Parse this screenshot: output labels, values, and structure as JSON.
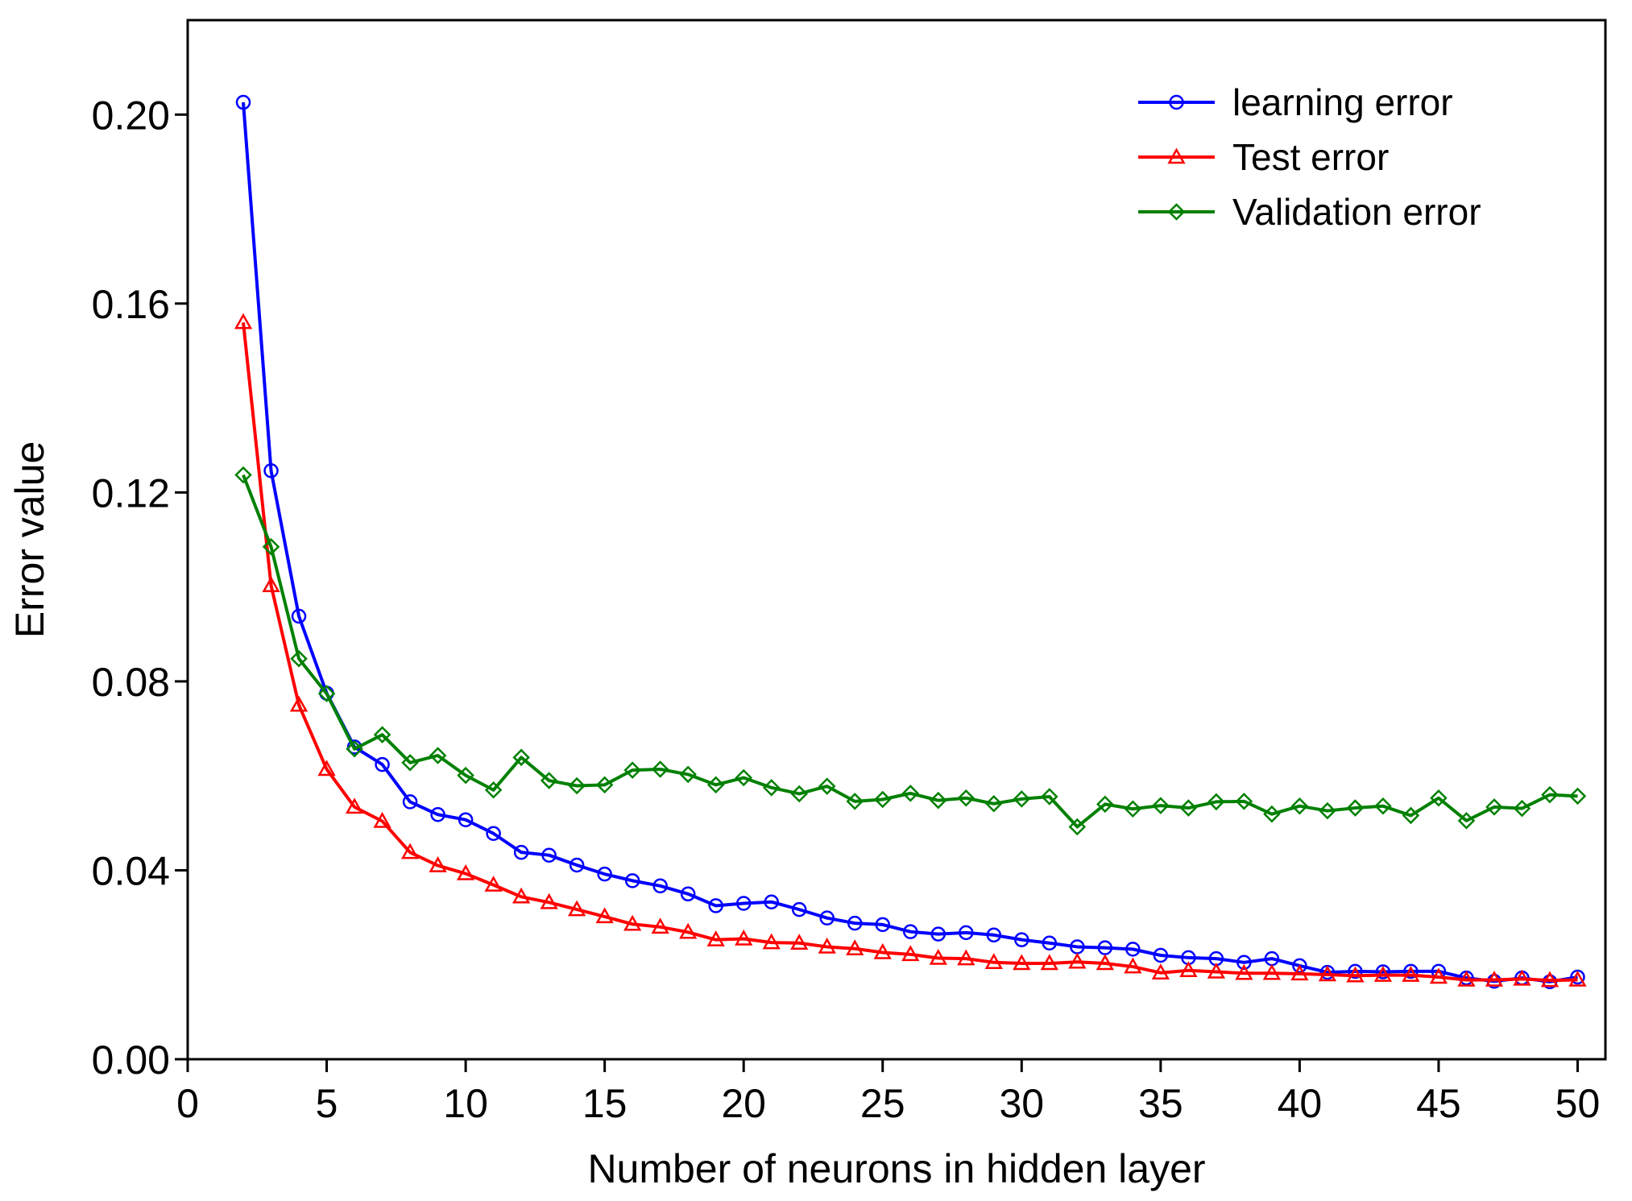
{
  "chart_data": {
    "type": "line",
    "title": "",
    "xlabel": "Number of neurons in hidden layer",
    "ylabel": "Error value",
    "xlim": [
      0,
      51
    ],
    "ylim": [
      0.0,
      0.22
    ],
    "xticks": [
      0,
      5,
      10,
      15,
      20,
      25,
      30,
      35,
      40,
      45,
      50
    ],
    "xtick_labels": [
      "0",
      "5",
      "10",
      "15",
      "20",
      "25",
      "30",
      "35",
      "40",
      "45",
      "50"
    ],
    "yticks": [
      0.0,
      0.04,
      0.08,
      0.12,
      0.16,
      0.2
    ],
    "ytick_labels": [
      "0.00",
      "0.04",
      "0.08",
      "0.12",
      "0.16",
      "0.20"
    ],
    "grid": false,
    "legend_position": "top-right",
    "x": [
      2,
      3,
      4,
      5,
      6,
      7,
      8,
      9,
      10,
      11,
      12,
      13,
      14,
      15,
      16,
      17,
      18,
      19,
      20,
      21,
      22,
      23,
      24,
      25,
      26,
      27,
      28,
      29,
      30,
      31,
      32,
      33,
      34,
      35,
      36,
      37,
      38,
      39,
      40,
      41,
      42,
      43,
      44,
      45,
      46,
      47,
      48,
      49,
      50
    ],
    "series": [
      {
        "name": "learning error",
        "color": "#0000ff",
        "marker": "circle",
        "values": [
          0.2026,
          0.1246,
          0.0938,
          0.0775,
          0.0661,
          0.0624,
          0.0545,
          0.0518,
          0.0507,
          0.0478,
          0.0438,
          0.0432,
          0.0411,
          0.0392,
          0.0378,
          0.0367,
          0.035,
          0.0325,
          0.033,
          0.0333,
          0.0317,
          0.0299,
          0.0288,
          0.0285,
          0.027,
          0.0265,
          0.0268,
          0.0263,
          0.0253,
          0.0246,
          0.0238,
          0.0236,
          0.0233,
          0.022,
          0.0215,
          0.0213,
          0.0205,
          0.0213,
          0.0198,
          0.0184,
          0.0186,
          0.0185,
          0.0186,
          0.0186,
          0.0172,
          0.0165,
          0.0172,
          0.0164,
          0.0174
        ]
      },
      {
        "name": "Test error",
        "color": "#ff0000",
        "marker": "triangle",
        "values": [
          0.156,
          0.1003,
          0.075,
          0.0614,
          0.0534,
          0.0504,
          0.0438,
          0.041,
          0.0393,
          0.0369,
          0.0344,
          0.0332,
          0.0317,
          0.0302,
          0.0286,
          0.028,
          0.0269,
          0.0253,
          0.0255,
          0.0247,
          0.0246,
          0.0238,
          0.0234,
          0.0226,
          0.0222,
          0.0214,
          0.0213,
          0.0205,
          0.0203,
          0.0203,
          0.0206,
          0.0203,
          0.0196,
          0.0183,
          0.0188,
          0.0185,
          0.0182,
          0.0182,
          0.0181,
          0.0179,
          0.0177,
          0.0178,
          0.0178,
          0.0174,
          0.0168,
          0.0168,
          0.017,
          0.0167,
          0.0168
        ]
      },
      {
        "name": "Validation error",
        "color": "#008000",
        "marker": "diamond",
        "values": [
          0.1237,
          0.1085,
          0.0848,
          0.0774,
          0.0657,
          0.0687,
          0.0628,
          0.0643,
          0.0601,
          0.057,
          0.0639,
          0.059,
          0.0579,
          0.0581,
          0.0612,
          0.0614,
          0.0603,
          0.0581,
          0.0596,
          0.0575,
          0.0562,
          0.0578,
          0.0546,
          0.055,
          0.0563,
          0.0548,
          0.0553,
          0.0541,
          0.0551,
          0.0556,
          0.0492,
          0.054,
          0.053,
          0.0537,
          0.0532,
          0.0545,
          0.0546,
          0.0519,
          0.0536,
          0.0526,
          0.0532,
          0.0536,
          0.0516,
          0.0553,
          0.0505,
          0.0534,
          0.0531,
          0.056,
          0.0557
        ]
      }
    ]
  }
}
